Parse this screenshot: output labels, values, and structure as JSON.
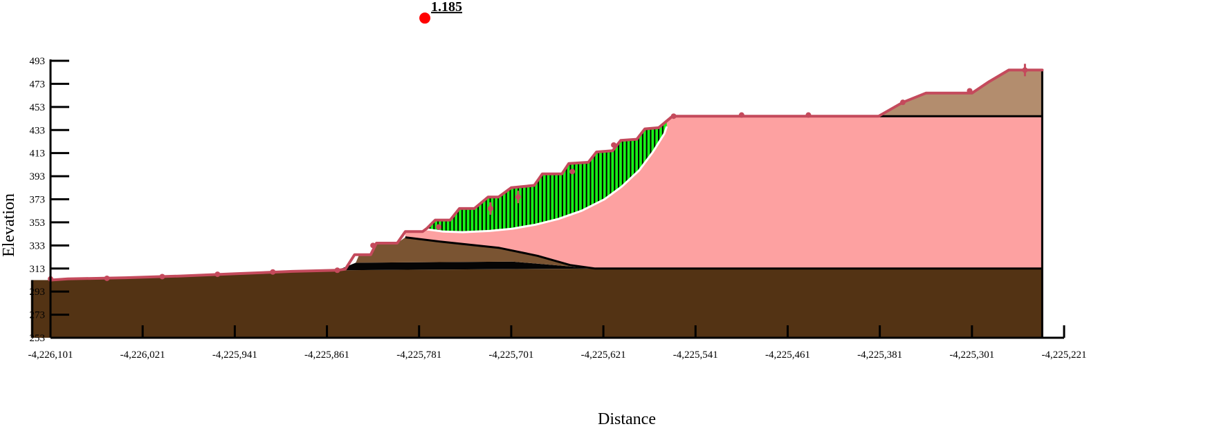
{
  "figure": {
    "x_axis_title": "Distance",
    "y_axis_title": "Elevation",
    "safety_factor_label": "1.185"
  },
  "colors": {
    "bedrock": "#533314",
    "weak_layer": "#050505",
    "upper_soil": "#7a5432",
    "fill_soil": "#fda1a1",
    "cap_soil": "#b38d6e",
    "slice_fill": "#17f217",
    "slice_line": "#000000",
    "ground_line": "#c44a5c",
    "slip_surface": "#ffffff",
    "center_marker": "#ff0000"
  },
  "chart_data": {
    "type": "diagram",
    "x_axis": {
      "title": "Distance",
      "range": [
        -4226101,
        -4225221
      ],
      "ticks": [
        -4226101,
        -4226021,
        -4225941,
        -4225861,
        -4225781,
        -4225701,
        -4225621,
        -4225541,
        -4225461,
        -4225381,
        -4225301,
        -4225221
      ],
      "tick_labels": [
        "-4,226,101",
        "-4,226,021",
        "-4,225,941",
        "-4,225,861",
        "-4,225,781",
        "-4,225,701",
        "-4,225,621",
        "-4,225,541",
        "-4,225,461",
        "-4,225,381",
        "-4,225,301",
        "-4,225,221"
      ]
    },
    "y_axis": {
      "title": "Elevation",
      "range": [
        253,
        493
      ],
      "ticks": [
        253,
        273,
        293,
        313,
        333,
        353,
        373,
        393,
        413,
        433,
        453,
        473,
        493
      ],
      "tick_labels": [
        "253",
        "273",
        "293",
        "313",
        "333",
        "353",
        "373",
        "393",
        "413",
        "433",
        "453",
        "473",
        "493"
      ]
    },
    "slip_center": {
      "x": -4225776,
      "y": 530,
      "factor_of_safety": "1.185"
    },
    "ground_surface": [
      [
        -4226101,
        303
      ],
      [
        -4226086,
        304
      ],
      [
        -4226036,
        305
      ],
      [
        -4225988,
        306.5
      ],
      [
        -4225940,
        308.5
      ],
      [
        -4225891,
        310.5
      ],
      [
        -4225852,
        311.5
      ],
      [
        -4225845,
        312.5
      ],
      [
        -4225837,
        325
      ],
      [
        -4225823,
        325
      ],
      [
        -4225818,
        335
      ],
      [
        -4225800,
        335
      ],
      [
        -4225793,
        345
      ],
      [
        -4225778,
        345
      ],
      [
        -4225774,
        348
      ],
      [
        -4225767,
        355
      ],
      [
        -4225754,
        355
      ],
      [
        -4225746,
        365
      ],
      [
        -4225733,
        365
      ],
      [
        -4225721,
        375
      ],
      [
        -4225712,
        375
      ],
      [
        -4225701,
        383
      ],
      [
        -4225681,
        385
      ],
      [
        -4225674,
        395
      ],
      [
        -4225657,
        395
      ],
      [
        -4225651,
        404
      ],
      [
        -4225634,
        405
      ],
      [
        -4225627,
        414
      ],
      [
        -4225613,
        415
      ],
      [
        -4225606,
        424
      ],
      [
        -4225592,
        425
      ],
      [
        -4225585,
        434
      ],
      [
        -4225573,
        435
      ],
      [
        -4225561,
        445
      ],
      [
        -4225382,
        445
      ],
      [
        -4225361,
        457
      ],
      [
        -4225341,
        465
      ],
      [
        -4225301,
        465
      ],
      [
        -4225286,
        475
      ],
      [
        -4225269,
        485
      ],
      [
        -4225240,
        485
      ],
      [
        -4225241,
        485
      ]
    ],
    "ground_markers": [
      [
        -4226101,
        304
      ],
      [
        -4226052,
        304.5
      ],
      [
        -4226004,
        306
      ],
      [
        -4225956,
        308
      ],
      [
        -4225908,
        310
      ],
      [
        -4225852,
        311.5
      ],
      [
        -4225821,
        333
      ],
      [
        -4225764,
        349
      ],
      [
        -4225719,
        365
      ],
      [
        -4225695,
        375
      ],
      [
        -4225648,
        397
      ],
      [
        -4225612,
        420
      ],
      [
        -4225560,
        445
      ],
      [
        -4225501,
        446
      ],
      [
        -4225443,
        446
      ],
      [
        -4225361,
        457
      ],
      [
        -4225303,
        467
      ],
      [
        -4225255,
        485
      ]
    ],
    "ground_crosses": [
      [
        -4226101,
        304
      ],
      [
        -4225719,
        365
      ],
      [
        -4225695,
        375
      ],
      [
        -4225255,
        485
      ]
    ],
    "layers": [
      {
        "name": "bedrock",
        "polygon": [
          [
            -4226118,
            303
          ],
          [
            -4226101,
            303
          ],
          [
            -4225852,
            311.5
          ],
          [
            -4225781,
            312
          ],
          [
            -4225621,
            313
          ],
          [
            -4225240,
            313
          ],
          [
            -4225240,
            253
          ],
          [
            -4226118,
            253
          ]
        ]
      },
      {
        "name": "weak_layer",
        "polygon": [
          [
            -4225852,
            311.5
          ],
          [
            -4225836,
            318
          ],
          [
            -4225700,
            319
          ],
          [
            -4225628,
            313
          ],
          [
            -4225781,
            312
          ]
        ]
      },
      {
        "name": "upper_soil",
        "polygon": [
          [
            -4225836,
            318
          ],
          [
            -4225833,
            325
          ],
          [
            -4225823,
            325
          ],
          [
            -4225818,
            335
          ],
          [
            -4225800,
            335
          ],
          [
            -4225793,
            340
          ],
          [
            -4225760,
            336
          ],
          [
            -4225712,
            331
          ],
          [
            -4225678,
            324
          ],
          [
            -4225650,
            316
          ],
          [
            -4225628,
            313
          ],
          [
            -4225700,
            319
          ]
        ]
      },
      {
        "name": "fill_soil",
        "polygon": [
          [
            -4225793,
            340
          ],
          [
            -4225793,
            345
          ],
          [
            -4225778,
            345
          ],
          [
            -4225774,
            348
          ],
          [
            -4225767,
            355
          ],
          [
            -4225754,
            355
          ],
          [
            -4225746,
            365
          ],
          [
            -4225733,
            365
          ],
          [
            -4225721,
            375
          ],
          [
            -4225712,
            375
          ],
          [
            -4225701,
            383
          ],
          [
            -4225681,
            385
          ],
          [
            -4225674,
            395
          ],
          [
            -4225657,
            395
          ],
          [
            -4225651,
            404
          ],
          [
            -4225634,
            405
          ],
          [
            -4225627,
            414
          ],
          [
            -4225613,
            415
          ],
          [
            -4225606,
            424
          ],
          [
            -4225592,
            425
          ],
          [
            -4225585,
            434
          ],
          [
            -4225573,
            435
          ],
          [
            -4225561,
            445
          ],
          [
            -4225240,
            445
          ],
          [
            -4225240,
            313
          ],
          [
            -4225628,
            313
          ],
          [
            -4225650,
            316
          ],
          [
            -4225678,
            324
          ],
          [
            -4225712,
            331
          ],
          [
            -4225760,
            336
          ]
        ]
      },
      {
        "name": "cap_soil",
        "polygon": [
          [
            -4225382,
            445
          ],
          [
            -4225361,
            457
          ],
          [
            -4225341,
            465
          ],
          [
            -4225301,
            465
          ],
          [
            -4225286,
            475
          ],
          [
            -4225269,
            485
          ],
          [
            -4225240,
            485
          ],
          [
            -4225240,
            445
          ]
        ]
      }
    ],
    "slip_surface": [
      [
        -4225775,
        347
      ],
      [
        -4225760,
        345
      ],
      [
        -4225743,
        344.5
      ],
      [
        -4225720,
        345.5
      ],
      [
        -4225700,
        347.5
      ],
      [
        -4225680,
        351
      ],
      [
        -4225660,
        356
      ],
      [
        -4225640,
        363
      ],
      [
        -4225620,
        373
      ],
      [
        -4225605,
        384
      ],
      [
        -4225590,
        398
      ],
      [
        -4225578,
        414
      ],
      [
        -4225568,
        430
      ],
      [
        -4225566,
        436
      ]
    ],
    "slice_count": 60,
    "layer_boundaries": [
      [
        [
          -4225793,
          340
        ],
        [
          -4225760,
          336
        ],
        [
          -4225712,
          331
        ],
        [
          -4225678,
          324
        ],
        [
          -4225650,
          316
        ],
        [
          -4225628,
          313
        ],
        [
          -4225240,
          313
        ]
      ],
      [
        [
          -4225561,
          445
        ],
        [
          -4225240,
          445
        ]
      ]
    ]
  }
}
